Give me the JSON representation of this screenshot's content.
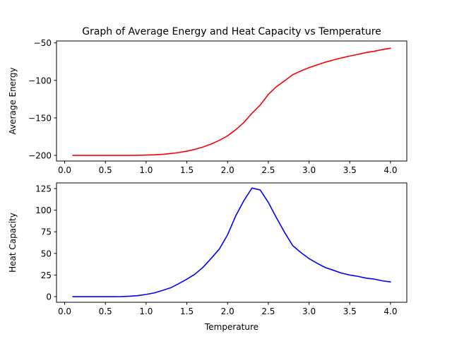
{
  "title": "Graph of Average Energy and Heat Capacity vs Temperature",
  "chart_data": [
    {
      "type": "line",
      "title": "Graph of Average Energy and Heat Capacity vs Temperature",
      "xlabel": "",
      "ylabel": "Average Energy",
      "xlim": [
        -0.1,
        4.2
      ],
      "ylim": [
        -207.5,
        -47.5
      ],
      "xticks": [
        0.0,
        0.5,
        1.0,
        1.5,
        2.0,
        2.5,
        3.0,
        3.5,
        4.0
      ],
      "xtick_labels": [
        "0.0",
        "0.5",
        "1.0",
        "1.5",
        "2.0",
        "2.5",
        "3.0",
        "3.5",
        "4.0"
      ],
      "yticks": [
        -200,
        -150,
        -100,
        -50
      ],
      "ytick_labels": [
        "−200",
        "−150",
        "−100",
        "−50"
      ],
      "grid": false,
      "series": [
        {
          "color": "#ff0000",
          "x": [
            0.1,
            0.2,
            0.3,
            0.4,
            0.5,
            0.6,
            0.7,
            0.8,
            0.9,
            1.0,
            1.1,
            1.2,
            1.3,
            1.4,
            1.5,
            1.6,
            1.7,
            1.8,
            1.9,
            2.0,
            2.1,
            2.2,
            2.3,
            2.4,
            2.5,
            2.6,
            2.7,
            2.8,
            2.9,
            3.0,
            3.1,
            3.2,
            3.3,
            3.4,
            3.5,
            3.6,
            3.7,
            3.8,
            3.9,
            4.0
          ],
          "values": [
            -200,
            -200,
            -200,
            -200,
            -200,
            -200,
            -200,
            -200,
            -199.9,
            -199.6,
            -199.2,
            -198.6,
            -197.6,
            -196.2,
            -194.4,
            -191.9,
            -188.8,
            -184.8,
            -179.9,
            -173.9,
            -165.8,
            -156.2,
            -143.8,
            -133.0,
            -118.8,
            -108.4,
            -100.6,
            -92.4,
            -87.5,
            -83.0,
            -79.4,
            -75.8,
            -72.8,
            -70.0,
            -67.6,
            -65.4,
            -63.0,
            -61.2,
            -59.0,
            -57.2
          ]
        }
      ]
    },
    {
      "type": "line",
      "title": "",
      "xlabel": "Temperature",
      "ylabel": "Heat Capacity",
      "xlim": [
        -0.1,
        4.2
      ],
      "ylim": [
        -6.5,
        131.5
      ],
      "xticks": [
        0.0,
        0.5,
        1.0,
        1.5,
        2.0,
        2.5,
        3.0,
        3.5,
        4.0
      ],
      "xtick_labels": [
        "0.0",
        "0.5",
        "1.0",
        "1.5",
        "2.0",
        "2.5",
        "3.0",
        "3.5",
        "4.0"
      ],
      "yticks": [
        0,
        25,
        50,
        75,
        100,
        125
      ],
      "ytick_labels": [
        "0",
        "25",
        "50",
        "75",
        "100",
        "125"
      ],
      "grid": false,
      "series": [
        {
          "color": "#0000ff",
          "x": [
            0.1,
            0.2,
            0.3,
            0.4,
            0.5,
            0.6,
            0.7,
            0.8,
            0.9,
            1.0,
            1.1,
            1.2,
            1.3,
            1.4,
            1.5,
            1.6,
            1.7,
            1.8,
            1.9,
            2.0,
            2.1,
            2.2,
            2.3,
            2.4,
            2.5,
            2.6,
            2.7,
            2.8,
            2.9,
            3.0,
            3.1,
            3.2,
            3.3,
            3.4,
            3.5,
            3.6,
            3.7,
            3.8,
            3.9,
            4.0
          ],
          "values": [
            0,
            0,
            0,
            0,
            0,
            0,
            0.1,
            0.5,
            1.2,
            2.6,
            4.3,
            7.2,
            10.2,
            15.0,
            20.2,
            26.0,
            34.1,
            44.4,
            55.2,
            71.5,
            93.4,
            111.0,
            125.6,
            123.4,
            109.0,
            91.2,
            74.3,
            59.0,
            51.0,
            44.0,
            38.6,
            33.6,
            30.5,
            27.2,
            25.0,
            23.5,
            21.4,
            20.3,
            18.3,
            17.0
          ]
        }
      ]
    }
  ]
}
